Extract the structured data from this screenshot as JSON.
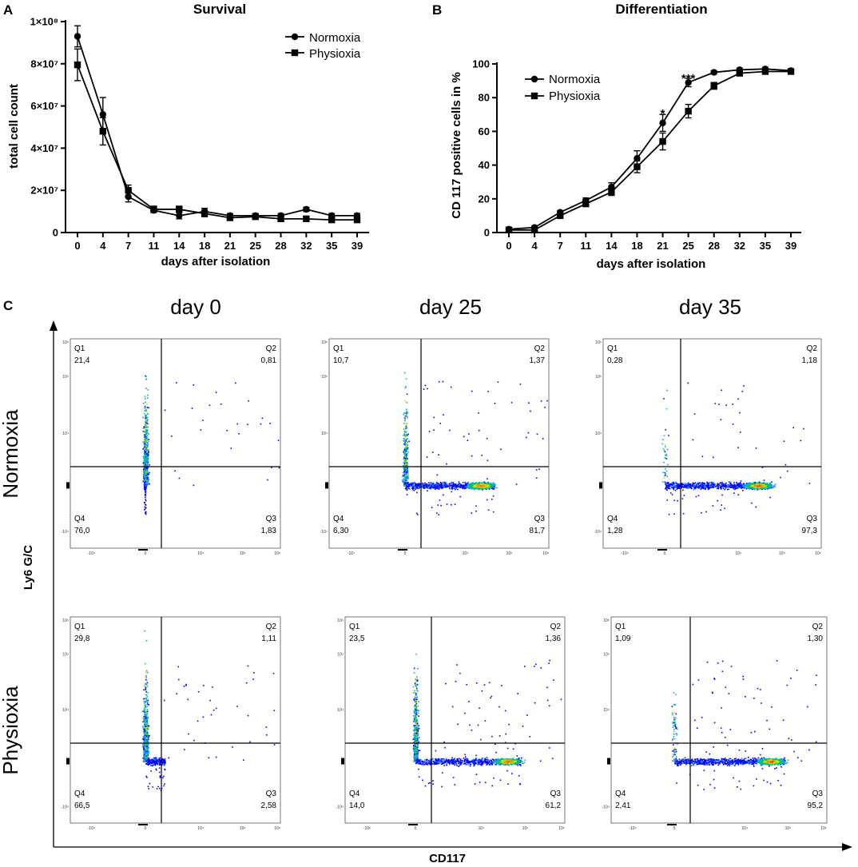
{
  "panel_labels": {
    "a": "A",
    "b": "B",
    "c": "C"
  },
  "chart_data": [
    {
      "type": "line",
      "title": "Survival",
      "xlabel": "days after isolation",
      "ylabel": "total cell count",
      "categories": [
        "0",
        "4",
        "7",
        "11",
        "14",
        "18",
        "21",
        "25",
        "28",
        "32",
        "35",
        "39"
      ],
      "ylim": [
        0,
        100000000
      ],
      "yticks": [
        {
          "value": 0,
          "label": "0"
        },
        {
          "value": 20000000,
          "label": "2×10⁷"
        },
        {
          "value": 40000000,
          "label": "4×10⁷"
        },
        {
          "value": 60000000,
          "label": "6×10⁷"
        },
        {
          "value": 80000000,
          "label": "8×10⁷"
        },
        {
          "value": 100000000,
          "label": "1×10⁸"
        }
      ],
      "legend_position": "top-right",
      "series": [
        {
          "name": "Normoxia",
          "marker": "circle",
          "values": [
            93000000,
            56000000,
            17000000,
            10500000,
            8000000,
            10000000,
            8000000,
            8000000,
            8000000,
            11000000,
            8000000,
            8000000
          ],
          "errors": [
            5000000,
            8000000,
            2500000,
            1000000,
            1500000,
            1500000,
            1000000,
            1000000,
            1000000,
            1000000,
            1000000,
            1000000
          ]
        },
        {
          "name": "Physioxia",
          "marker": "square",
          "values": [
            79500000,
            48000000,
            20000000,
            11000000,
            11000000,
            9000000,
            7000000,
            7500000,
            6500000,
            6500000,
            6000000,
            6000000
          ],
          "errors": [
            7500000,
            6500000,
            2500000,
            1500000,
            1500000,
            1500000,
            1000000,
            1000000,
            1000000,
            1000000,
            1000000,
            1000000
          ]
        }
      ]
    },
    {
      "type": "line",
      "title": "Differentiation",
      "xlabel": "days after isolation",
      "ylabel": "CD 117 positive cells in %",
      "categories": [
        "0",
        "4",
        "7",
        "11",
        "14",
        "18",
        "21",
        "25",
        "28",
        "32",
        "35",
        "39"
      ],
      "ylim": [
        0,
        100
      ],
      "yticks": [
        {
          "value": 0,
          "label": "0"
        },
        {
          "value": 20,
          "label": "20"
        },
        {
          "value": 40,
          "label": "40"
        },
        {
          "value": 60,
          "label": "60"
        },
        {
          "value": 80,
          "label": "80"
        },
        {
          "value": 100,
          "label": "100"
        }
      ],
      "legend_position": "top-left",
      "series": [
        {
          "name": "Normoxia",
          "marker": "circle",
          "values": [
            2,
            3,
            12,
            19,
            27,
            44,
            65,
            89,
            95,
            96.5,
            97,
            96
          ],
          "errors": [
            1,
            1,
            1,
            1.5,
            2.5,
            4.5,
            5,
            2.5,
            1,
            1,
            1,
            1
          ]
        },
        {
          "name": "Physioxia",
          "marker": "square",
          "values": [
            1.5,
            1.5,
            10,
            17,
            24,
            39,
            54,
            72,
            87,
            94.5,
            95.5,
            95.5
          ],
          "errors": [
            1,
            1,
            1,
            1.5,
            2,
            3.5,
            5,
            4,
            2,
            1.5,
            1,
            1
          ]
        }
      ],
      "significance": [
        {
          "x": "21",
          "y": 72,
          "label": "*"
        },
        {
          "x": "25",
          "y": 93,
          "label": "***"
        }
      ]
    },
    {
      "type": "scatter",
      "subtype": "flow cytometry quadrant plots",
      "xlabel": "CD117",
      "ylabel": "Ly6 G/C",
      "columns": [
        "day 0",
        "day 25",
        "day 35"
      ],
      "rows": [
        "Normoxia",
        "Physioxia"
      ],
      "plots": [
        {
          "row": "Normoxia",
          "col": "day 0",
          "q1": "21,4",
          "q2": "0,81",
          "q3": "1,83",
          "q4": "76,0"
        },
        {
          "row": "Normoxia",
          "col": "day 25",
          "q1": "10,7",
          "q2": "1,37",
          "q3": "81,7",
          "q4": "6,30"
        },
        {
          "row": "Normoxia",
          "col": "day 35",
          "q1": "0,28",
          "q2": "1,18",
          "q3": "97,3",
          "q4": "1,28"
        },
        {
          "row": "Physioxia",
          "col": "day 0",
          "q1": "29,8",
          "q2": "1,11",
          "q3": "2,58",
          "q4": "66,5"
        },
        {
          "row": "Physioxia",
          "col": "day 25",
          "q1": "23,5",
          "q2": "1,36",
          "q3": "61,2",
          "q4": "14,0"
        },
        {
          "row": "Physioxia",
          "col": "day 35",
          "q1": "1,09",
          "q2": "1,30",
          "q3": "95,2",
          "q4": "2,41"
        }
      ],
      "quadrant_names": {
        "q1": "Q1",
        "q2": "Q2",
        "q3": "Q3",
        "q4": "Q4"
      },
      "axis_tick_labels": {
        "x": [
          "-10⁴",
          "0",
          "10⁴",
          "10⁵",
          "10⁶"
        ],
        "y": [
          "10⁶",
          "10⁵",
          "10⁴",
          "0",
          "-10⁴"
        ]
      }
    }
  ]
}
